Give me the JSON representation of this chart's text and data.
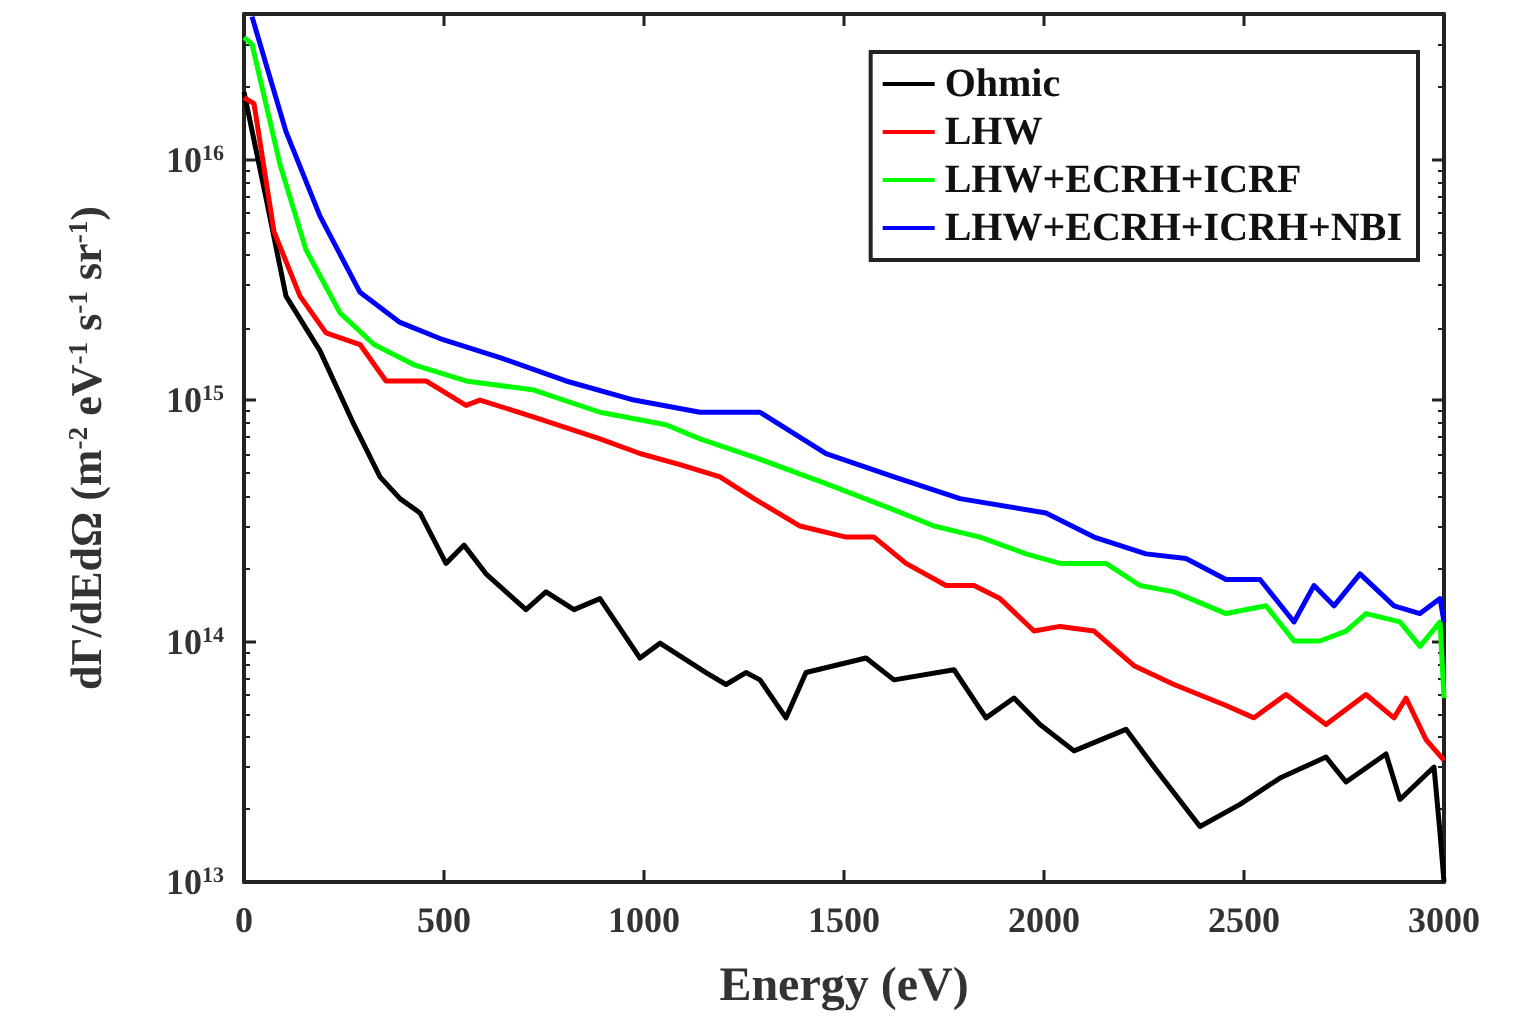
{
  "chart_data": {
    "type": "line",
    "xlabel": "Energy (eV)",
    "ylabel": "dΓ/dEdΩ (m$^{-2}$ eV$^{-1}$ s$^{-1}$ sr$^{-1}$)",
    "log": "y",
    "legend": "top right",
    "xlim": [
      0,
      3000
    ],
    "xticks": [
      0,
      500,
      1000,
      1500,
      2000,
      2500,
      3000
    ],
    "ylim": [
      10000000000000.0,
      4e+16
    ],
    "yticks": [
      {
        "value": 10000000000000.0,
        "label": "10$^{13}$"
      },
      {
        "value": 100000000000000.0,
        "label": "10$^{14}$"
      },
      {
        "value": 1000000000000000.0,
        "label": "10$^{15}$"
      },
      {
        "value": 1e+16,
        "label": "10$^{16}$"
      }
    ],
    "series": [
      {
        "name": "Ohmic",
        "color": "#000000",
        "x": [
          0,
          55,
          105,
          190,
          275,
          340,
          390,
          440,
          505,
          550,
          605,
          705,
          755,
          825,
          890,
          990,
          1040,
          1155,
          1205,
          1255,
          1290,
          1355,
          1405,
          1555,
          1625,
          1775,
          1855,
          1925,
          1990,
          2075,
          2205,
          2275,
          2390,
          2490,
          2590,
          2705,
          2755,
          2855,
          2890,
          2975,
          2990,
          3000
        ],
        "values": [
          1.9e+16,
          6900000000000000.0,
          2700000000000000.0,
          1600000000000000.0,
          790000000000000.0,
          480000000000000.0,
          390000000000000.0,
          340000000000000.0,
          210000000000000.0,
          250000000000000.0,
          190000000000000.0,
          135000000000000.0,
          160000000000000.0,
          135000000000000.0,
          150000000000000.0,
          85000000000000.0,
          98000000000000.0,
          74000000000000.0,
          66000000000000.0,
          74000000000000.0,
          69000000000000.0,
          48000000000000.0,
          74000000000000.0,
          85000000000000.0,
          69000000000000.0,
          76000000000000.0,
          48000000000000.0,
          58000000000000.0,
          45000000000000.0,
          35000000000000.0,
          43000000000000.0,
          30000000000000.0,
          17000000000000.0,
          21000000000000.0,
          27000000000000.0,
          33000000000000.0,
          26000000000000.0,
          34000000000000.0,
          22000000000000.0,
          30000000000000.0,
          16000000000000.0,
          10000000000000.0
        ]
      },
      {
        "name": "LHW",
        "color": "#ff0000",
        "x": [
          0,
          25,
          75,
          140,
          205,
          290,
          355,
          455,
          555,
          590,
          725,
          890,
          990,
          1090,
          1190,
          1275,
          1390,
          1505,
          1575,
          1655,
          1755,
          1825,
          1890,
          1975,
          2040,
          2125,
          2225,
          2325,
          2455,
          2525,
          2605,
          2705,
          2805,
          2875,
          2905,
          2955,
          3000
        ],
        "values": [
          1.8e+16,
          1.7e+16,
          5000000000000000.0,
          2700000000000000.0,
          1900000000000000.0,
          1700000000000000.0,
          1200000000000000.0,
          1200000000000000.0,
          950000000000000.0,
          1000000000000000.0,
          850000000000000.0,
          690000000000000.0,
          600000000000000.0,
          540000000000000.0,
          480000000000000.0,
          390000000000000.0,
          300000000000000.0,
          270000000000000.0,
          270000000000000.0,
          210000000000000.0,
          170000000000000.0,
          170000000000000.0,
          150000000000000.0,
          110000000000000.0,
          115000000000000.0,
          110000000000000.0,
          79000000000000.0,
          66000000000000.0,
          54000000000000.0,
          48000000000000.0,
          60000000000000.0,
          45000000000000.0,
          60000000000000.0,
          48000000000000.0,
          58000000000000.0,
          39000000000000.0,
          32000000000000.0
        ]
      },
      {
        "name": "LHW+ECRH+ICRF",
        "color": "#00ff00",
        "x": [
          0,
          20,
          90,
          155,
          240,
          325,
          425,
          555,
          725,
          890,
          1055,
          1140,
          1275,
          1455,
          1625,
          1725,
          1840,
          1955,
          2040,
          2155,
          2240,
          2325,
          2455,
          2555,
          2625,
          2690,
          2755,
          2805,
          2890,
          2940,
          2990,
          3000
        ],
        "values": [
          3.2e+16,
          3e+16,
          9500000000000000.0,
          4200000000000000.0,
          2300000000000000.0,
          1700000000000000.0,
          1400000000000000.0,
          1200000000000000.0,
          1100000000000000.0,
          890000000000000.0,
          790000000000000.0,
          690000000000000.0,
          580000000000000.0,
          450000000000000.0,
          350000000000000.0,
          300000000000000.0,
          270000000000000.0,
          230000000000000.0,
          210000000000000.0,
          210000000000000.0,
          170000000000000.0,
          160000000000000.0,
          130000000000000.0,
          140000000000000.0,
          100000000000000.0,
          100000000000000.0,
          110000000000000.0,
          130000000000000.0,
          120000000000000.0,
          95000000000000.0,
          120000000000000.0,
          58000000000000.0
        ]
      },
      {
        "name": "LHW+ECRH+ICRH+NBI",
        "color": "#0000ff",
        "x": [
          20,
          105,
          190,
          290,
          390,
          490,
          640,
          805,
          975,
          1140,
          1290,
          1455,
          1625,
          1790,
          2005,
          2125,
          2255,
          2355,
          2455,
          2540,
          2625,
          2675,
          2725,
          2790,
          2875,
          2940,
          2990,
          3000
        ],
        "values": [
          3.9e+16,
          1.3e+16,
          5800000000000000.0,
          2800000000000000.0,
          2100000000000000.0,
          1800000000000000.0,
          1500000000000000.0,
          1200000000000000.0,
          1000000000000000.0,
          890000000000000.0,
          890000000000000.0,
          600000000000000.0,
          480000000000000.0,
          390000000000000.0,
          340000000000000.0,
          270000000000000.0,
          230000000000000.0,
          220000000000000.0,
          180000000000000.0,
          180000000000000.0,
          120000000000000.0,
          170000000000000.0,
          140000000000000.0,
          190000000000000.0,
          140000000000000.0,
          130000000000000.0,
          150000000000000.0,
          120000000000000.0
        ]
      }
    ]
  }
}
